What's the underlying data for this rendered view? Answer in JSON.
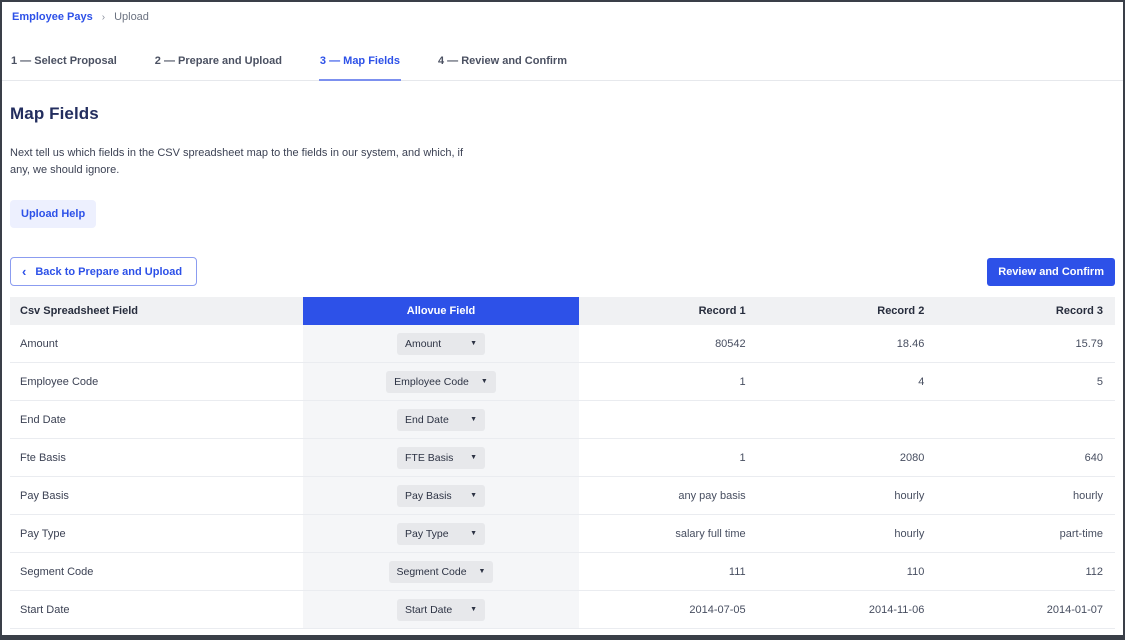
{
  "colors": {
    "accent": "#2d51e8",
    "allovue_header_bg": "#2d51e8",
    "table_header_bg": "#f0f1f3",
    "allovue_cell_bg": "#f5f6f8",
    "dropdown_bg": "#e7e8eb",
    "frame_border": "#3a3f48"
  },
  "breadcrumb": {
    "separator": "›",
    "items": [
      {
        "label": "Employee Pays",
        "current": false
      },
      {
        "label": "Upload",
        "current": true
      }
    ]
  },
  "tabs": [
    {
      "label": "1 — Select Proposal",
      "active": false
    },
    {
      "label": "2 — Prepare and Upload",
      "active": false
    },
    {
      "label": "3 — Map Fields",
      "active": true
    },
    {
      "label": "4 — Review and Confirm",
      "active": false
    }
  ],
  "page": {
    "title": "Map Fields",
    "description": "Next tell us which fields in the CSV spreadsheet map to the fields in our system, and which, if any, we should ignore.",
    "upload_help_label": "Upload Help"
  },
  "actions": {
    "back_label": "Back to Prepare and Upload",
    "back_chevron": "‹",
    "review_label": "Review and Confirm"
  },
  "table": {
    "headers": {
      "csv_field": "Csv Spreadsheet Field",
      "allovue_field": "Allovue Field",
      "record1": "Record 1",
      "record2": "Record 2",
      "record3": "Record 3"
    },
    "dropdown_arrow": "▼",
    "rows": [
      {
        "csv_field": "Amount",
        "allovue_field": "Amount",
        "record1": "80542",
        "record2": "18.46",
        "record3": "15.79"
      },
      {
        "csv_field": "Employee Code",
        "allovue_field": "Employee Code",
        "record1": "1",
        "record2": "4",
        "record3": "5"
      },
      {
        "csv_field": "End Date",
        "allovue_field": "End Date",
        "record1": "",
        "record2": "",
        "record3": ""
      },
      {
        "csv_field": "Fte Basis",
        "allovue_field": "FTE Basis",
        "record1": "1",
        "record2": "2080",
        "record3": "640"
      },
      {
        "csv_field": "Pay Basis",
        "allovue_field": "Pay Basis",
        "record1": "any pay basis",
        "record2": "hourly",
        "record3": "hourly"
      },
      {
        "csv_field": "Pay Type",
        "allovue_field": "Pay Type",
        "record1": "salary full time",
        "record2": "hourly",
        "record3": "part-time"
      },
      {
        "csv_field": "Segment Code",
        "allovue_field": "Segment Code",
        "record1": "111",
        "record2": "110",
        "record3": "112"
      },
      {
        "csv_field": "Start Date",
        "allovue_field": "Start Date",
        "record1": "2014-07-05",
        "record2": "2014-11-06",
        "record3": "2014-01-07"
      }
    ]
  }
}
